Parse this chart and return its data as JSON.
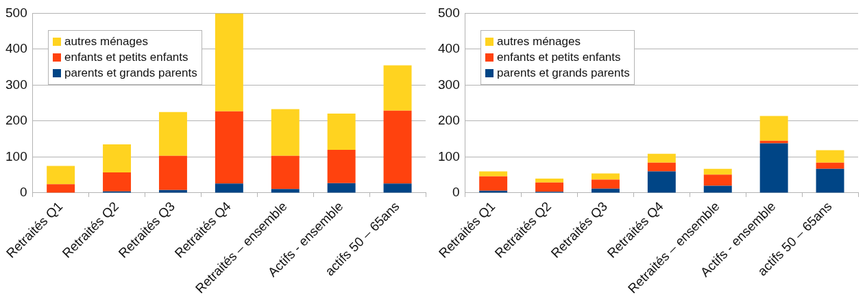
{
  "chart_data": [
    {
      "type": "bar",
      "stacked": true,
      "categories": [
        "Retraités Q1",
        "Retraités Q2",
        "Retraités Q3",
        "Retraités Q4",
        "Retraités – ensemble",
        "Actifs - ensemble",
        "actifs 50 – 65ans"
      ],
      "series": [
        {
          "name": "parents et grands parents",
          "color": "#004586",
          "values": [
            0,
            4,
            8,
            26,
            11,
            27,
            26
          ]
        },
        {
          "name": "enfants et petits enfants",
          "color": "#ff420e",
          "values": [
            24,
            53,
            95,
            201,
            92,
            93,
            203
          ]
        },
        {
          "name": "autres ménages",
          "color": "#ffd320",
          "values": [
            51,
            78,
            122,
            273,
            130,
            101,
            126
          ]
        }
      ],
      "ylim": [
        0,
        500
      ],
      "yticks": [
        0,
        100,
        200,
        300,
        400,
        500
      ],
      "grid": "y",
      "legend": "top left"
    },
    {
      "type": "bar",
      "stacked": true,
      "categories": [
        "Retraités Q1",
        "Retraités Q2",
        "Retraités Q3",
        "Retraités Q4",
        "Retraités – ensemble",
        "Actifs - ensemble",
        "actifs 50 – 65ans"
      ],
      "series": [
        {
          "name": "parents et grands parents",
          "color": "#004586",
          "values": [
            6,
            3,
            12,
            60,
            20,
            138,
            67
          ]
        },
        {
          "name": "enfants et petits enfants",
          "color": "#ff420e",
          "values": [
            40,
            26,
            25,
            24,
            31,
            7,
            17
          ]
        },
        {
          "name": "autres ménages",
          "color": "#ffd320",
          "values": [
            14,
            11,
            17,
            25,
            16,
            69,
            35
          ]
        }
      ],
      "ylim": [
        0,
        500
      ],
      "yticks": [
        0,
        100,
        200,
        300,
        400,
        500
      ],
      "grid": "y",
      "legend": "top left"
    }
  ]
}
